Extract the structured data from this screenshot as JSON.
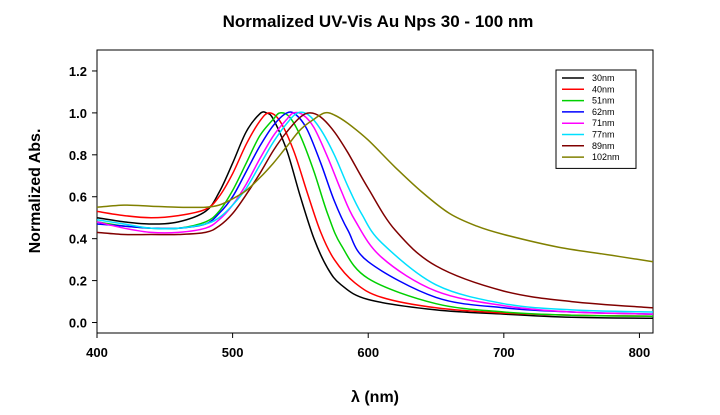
{
  "chart_data": {
    "type": "line",
    "title": "Normalized UV-Vis Au Nps 30 - 100 nm",
    "xlabel": "λ (nm)",
    "ylabel": "Normalized Abs.",
    "xlim": [
      400,
      810
    ],
    "ylim": [
      -0.05,
      1.3
    ],
    "xticks": [
      400,
      500,
      600,
      700,
      800
    ],
    "yticks": [
      0.0,
      0.2,
      0.4,
      0.6,
      0.8,
      1.0,
      1.2
    ],
    "xtick_labels": [
      "400",
      "500",
      "600",
      "700",
      "800"
    ],
    "ytick_labels": [
      "0.0",
      "0.2",
      "0.4",
      "0.6",
      "0.8",
      "1.0",
      "1.2"
    ],
    "grid": false,
    "legend_position": "top-right",
    "series": [
      {
        "name": "30nm",
        "color": "#000000",
        "points": [
          [
            400,
            0.5
          ],
          [
            420,
            0.48
          ],
          [
            440,
            0.47
          ],
          [
            460,
            0.48
          ],
          [
            480,
            0.53
          ],
          [
            490,
            0.62
          ],
          [
            500,
            0.76
          ],
          [
            510,
            0.91
          ],
          [
            520,
            0.995
          ],
          [
            525,
            1.0
          ],
          [
            530,
            0.97
          ],
          [
            540,
            0.82
          ],
          [
            550,
            0.6
          ],
          [
            560,
            0.4
          ],
          [
            570,
            0.26
          ],
          [
            580,
            0.18
          ],
          [
            600,
            0.11
          ],
          [
            650,
            0.06
          ],
          [
            700,
            0.04
          ],
          [
            750,
            0.025
          ],
          [
            810,
            0.02
          ]
        ]
      },
      {
        "name": "40nm",
        "color": "#ff0000",
        "points": [
          [
            400,
            0.53
          ],
          [
            420,
            0.51
          ],
          [
            440,
            0.5
          ],
          [
            460,
            0.51
          ],
          [
            480,
            0.54
          ],
          [
            490,
            0.6
          ],
          [
            500,
            0.71
          ],
          [
            510,
            0.85
          ],
          [
            520,
            0.96
          ],
          [
            527,
            1.0
          ],
          [
            535,
            0.96
          ],
          [
            545,
            0.82
          ],
          [
            555,
            0.62
          ],
          [
            565,
            0.43
          ],
          [
            575,
            0.3
          ],
          [
            590,
            0.19
          ],
          [
            610,
            0.12
          ],
          [
            650,
            0.07
          ],
          [
            700,
            0.045
          ],
          [
            750,
            0.035
          ],
          [
            810,
            0.03
          ]
        ]
      },
      {
        "name": "51nm",
        "color": "#00d000",
        "points": [
          [
            400,
            0.48
          ],
          [
            420,
            0.46
          ],
          [
            440,
            0.45
          ],
          [
            460,
            0.45
          ],
          [
            480,
            0.48
          ],
          [
            490,
            0.53
          ],
          [
            500,
            0.63
          ],
          [
            510,
            0.76
          ],
          [
            520,
            0.89
          ],
          [
            530,
            0.97
          ],
          [
            535,
            1.0
          ],
          [
            542,
            0.98
          ],
          [
            550,
            0.89
          ],
          [
            560,
            0.72
          ],
          [
            570,
            0.52
          ],
          [
            580,
            0.37
          ],
          [
            600,
            0.21
          ],
          [
            650,
            0.09
          ],
          [
            700,
            0.05
          ],
          [
            750,
            0.035
          ],
          [
            810,
            0.03
          ]
        ]
      },
      {
        "name": "62nm",
        "color": "#0000ff",
        "points": [
          [
            400,
            0.47
          ],
          [
            420,
            0.46
          ],
          [
            440,
            0.45
          ],
          [
            460,
            0.45
          ],
          [
            480,
            0.47
          ],
          [
            490,
            0.52
          ],
          [
            500,
            0.6
          ],
          [
            510,
            0.72
          ],
          [
            520,
            0.84
          ],
          [
            530,
            0.94
          ],
          [
            540,
            1.0
          ],
          [
            547,
            0.99
          ],
          [
            555,
            0.92
          ],
          [
            565,
            0.76
          ],
          [
            575,
            0.58
          ],
          [
            585,
            0.44
          ],
          [
            600,
            0.29
          ],
          [
            650,
            0.12
          ],
          [
            700,
            0.07
          ],
          [
            750,
            0.05
          ],
          [
            810,
            0.04
          ]
        ]
      },
      {
        "name": "71nm",
        "color": "#ff00ff",
        "points": [
          [
            400,
            0.48
          ],
          [
            420,
            0.45
          ],
          [
            440,
            0.43
          ],
          [
            460,
            0.43
          ],
          [
            480,
            0.45
          ],
          [
            490,
            0.49
          ],
          [
            500,
            0.56
          ],
          [
            510,
            0.66
          ],
          [
            520,
            0.78
          ],
          [
            530,
            0.89
          ],
          [
            540,
            0.97
          ],
          [
            545,
            1.0
          ],
          [
            552,
            0.99
          ],
          [
            560,
            0.93
          ],
          [
            570,
            0.79
          ],
          [
            580,
            0.63
          ],
          [
            590,
            0.49
          ],
          [
            610,
            0.31
          ],
          [
            650,
            0.15
          ],
          [
            700,
            0.08
          ],
          [
            750,
            0.05
          ],
          [
            810,
            0.04
          ]
        ]
      },
      {
        "name": "77nm",
        "color": "#00e0ff",
        "points": [
          [
            400,
            0.49
          ],
          [
            420,
            0.47
          ],
          [
            440,
            0.45
          ],
          [
            460,
            0.45
          ],
          [
            480,
            0.47
          ],
          [
            490,
            0.5
          ],
          [
            500,
            0.56
          ],
          [
            510,
            0.64
          ],
          [
            520,
            0.75
          ],
          [
            530,
            0.86
          ],
          [
            540,
            0.95
          ],
          [
            548,
            1.0
          ],
          [
            556,
            0.99
          ],
          [
            565,
            0.92
          ],
          [
            575,
            0.8
          ],
          [
            585,
            0.65
          ],
          [
            595,
            0.52
          ],
          [
            610,
            0.38
          ],
          [
            650,
            0.18
          ],
          [
            700,
            0.09
          ],
          [
            750,
            0.06
          ],
          [
            810,
            0.05
          ]
        ]
      },
      {
        "name": "89nm",
        "color": "#800000",
        "points": [
          [
            400,
            0.43
          ],
          [
            420,
            0.42
          ],
          [
            440,
            0.42
          ],
          [
            460,
            0.42
          ],
          [
            480,
            0.43
          ],
          [
            490,
            0.46
          ],
          [
            500,
            0.52
          ],
          [
            510,
            0.61
          ],
          [
            520,
            0.71
          ],
          [
            530,
            0.82
          ],
          [
            540,
            0.91
          ],
          [
            550,
            0.98
          ],
          [
            557,
            1.0
          ],
          [
            565,
            0.98
          ],
          [
            575,
            0.91
          ],
          [
            585,
            0.81
          ],
          [
            600,
            0.64
          ],
          [
            620,
            0.44
          ],
          [
            650,
            0.27
          ],
          [
            700,
            0.15
          ],
          [
            750,
            0.1
          ],
          [
            810,
            0.07
          ]
        ]
      },
      {
        "name": "102nm",
        "color": "#808000",
        "points": [
          [
            400,
            0.55
          ],
          [
            420,
            0.56
          ],
          [
            440,
            0.555
          ],
          [
            460,
            0.55
          ],
          [
            480,
            0.55
          ],
          [
            490,
            0.56
          ],
          [
            500,
            0.59
          ],
          [
            510,
            0.63
          ],
          [
            520,
            0.69
          ],
          [
            530,
            0.76
          ],
          [
            540,
            0.84
          ],
          [
            550,
            0.92
          ],
          [
            560,
            0.97
          ],
          [
            568,
            1.0
          ],
          [
            575,
            0.99
          ],
          [
            585,
            0.95
          ],
          [
            600,
            0.87
          ],
          [
            620,
            0.74
          ],
          [
            640,
            0.62
          ],
          [
            660,
            0.52
          ],
          [
            680,
            0.46
          ],
          [
            700,
            0.42
          ],
          [
            740,
            0.36
          ],
          [
            780,
            0.32
          ],
          [
            810,
            0.29
          ]
        ]
      }
    ]
  }
}
